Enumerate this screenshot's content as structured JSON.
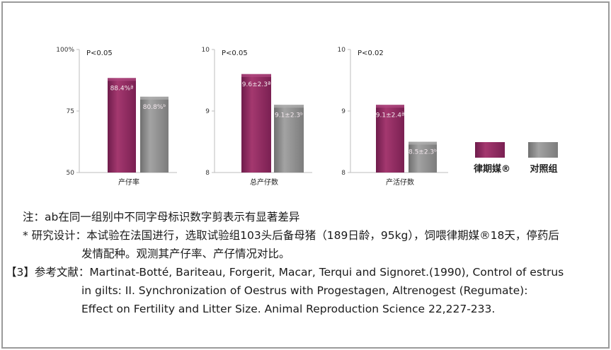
{
  "chart_data": [
    {
      "type": "bar",
      "xlabel": "产仔率",
      "ylim": [
        50,
        100
      ],
      "yticks": [
        50,
        75
      ],
      "ytop_label": "100%",
      "annotation": "P<0.05",
      "series": [
        {
          "name": "律期媒®",
          "values": [
            88.4
          ],
          "labels": [
            "88.4%ª"
          ]
        },
        {
          "name": "对照组",
          "values": [
            80.8
          ],
          "labels": [
            "80.8%ᵇ"
          ]
        }
      ]
    },
    {
      "type": "bar",
      "xlabel": "总产仔数",
      "ylim": [
        8,
        10
      ],
      "yticks": [
        8,
        9,
        10
      ],
      "annotation": "P<0.05",
      "series": [
        {
          "name": "律期媒®",
          "values": [
            9.6
          ],
          "labels": [
            "9.6±2.3ª"
          ]
        },
        {
          "name": "对照组",
          "values": [
            9.1
          ],
          "labels": [
            "9.1±2.3ᵇ"
          ]
        }
      ]
    },
    {
      "type": "bar",
      "xlabel": "产活仔数",
      "ylim": [
        8,
        10
      ],
      "yticks": [
        8,
        9,
        10
      ],
      "annotation": "P<0.02",
      "series": [
        {
          "name": "律期媒®",
          "values": [
            9.1
          ],
          "labels": [
            "9.1±2.4ª"
          ]
        },
        {
          "name": "对照组",
          "values": [
            8.5
          ],
          "labels": [
            "8.5±2.3ᵇ"
          ]
        }
      ]
    }
  ],
  "legend": {
    "items": [
      {
        "label": "律期媒®",
        "color": "#8e2a63"
      },
      {
        "label": "对照组",
        "color": "#8a8a8a"
      }
    ]
  },
  "colors": {
    "treatment": "#8e2a63",
    "control": "#8a8a8a",
    "axis": "#bdbdbd"
  },
  "notes": {
    "line1": "注：ab在同一组别中不同字母标识数字剪表示有显著差异",
    "line2": "* 研究设计：本试验在法国进行，选取试验组103头后备母猪（189日龄，95kg），饲喂律期媒®18天，停药后",
    "line3": "发情配种。观测其产仔率、产仔情况对比。",
    "line4": "【3】参考文献：Martinat-Botté, Bariteau, Forgerit, Macar, Terqui and Signoret.(1990), Control of estrus",
    "line5": "in gilts: II. Synchronization of Oestrus with Progestagen, Altrenogest (Regumate):",
    "line6": "Effect on Fertility and Litter Size. Animal Reproduction Science 22,227-233."
  }
}
